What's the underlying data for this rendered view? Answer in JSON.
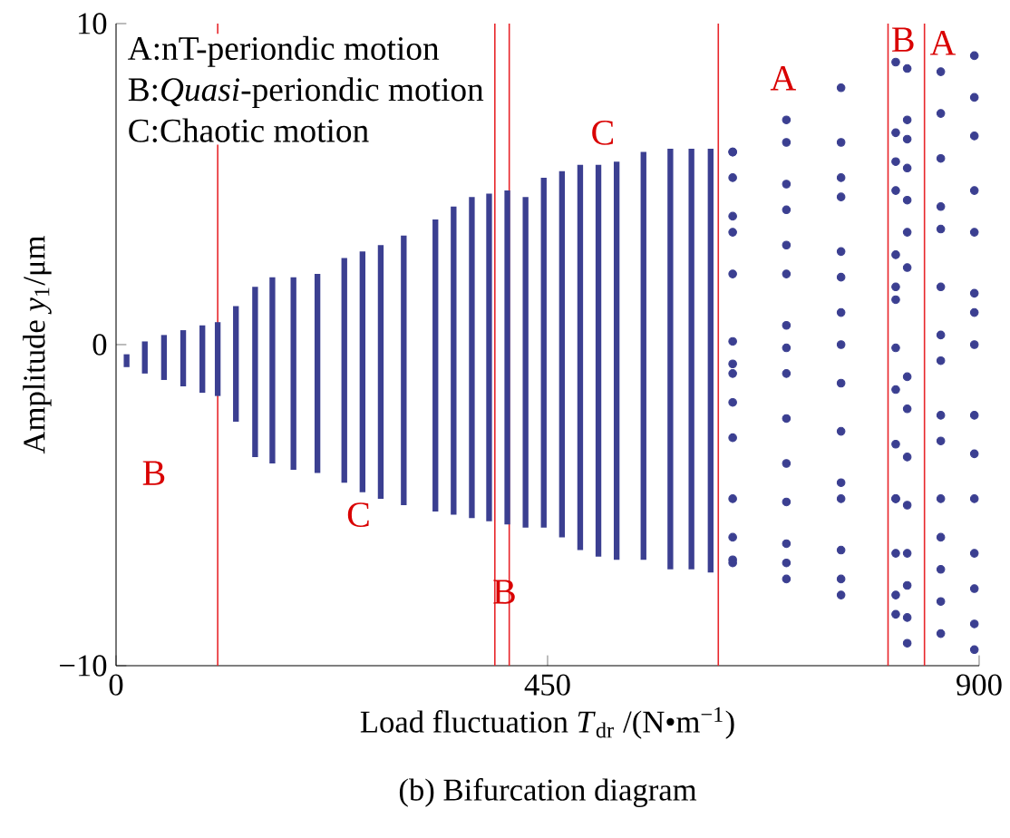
{
  "chart_data": {
    "type": "scatter",
    "title": "(b) Bifurcation diagram",
    "xlabel": "Load fluctuation  *T*$_{dr}$ /(N•m$^{−1}$)",
    "ylabel": "Amplitude  *y*$_{1}$/μm",
    "xlim": [
      0,
      900
    ],
    "ylim": [
      -10,
      10
    ],
    "xticks": [
      0,
      450,
      900
    ],
    "yticks": [
      {
        "value": -10,
        "label": "−10"
      },
      0,
      10
    ],
    "grid": false,
    "series": [
      {
        "type": "bar",
        "color": "#3b3f91",
        "x": [
          11,
          30,
          50,
          70,
          90,
          106,
          125,
          145,
          163,
          185,
          210,
          238,
          257,
          276,
          300,
          333,
          352,
          371,
          389,
          408,
          427,
          446,
          465,
          484,
          503,
          522,
          550,
          578,
          600,
          620
        ],
        "base": [
          -0.7,
          -0.9,
          -1.1,
          -1.3,
          -1.5,
          -1.6,
          -2.4,
          -3.5,
          -3.7,
          -3.9,
          -4.0,
          -4.3,
          -4.6,
          -4.8,
          -5.0,
          -5.2,
          -5.3,
          -5.4,
          -5.5,
          -5.6,
          -5.7,
          -5.7,
          -6.0,
          -6.4,
          -6.6,
          -6.7,
          -6.7,
          -7.0,
          -7.0,
          -7.1
        ],
        "values": [
          0.4,
          1.0,
          1.4,
          1.75,
          2.1,
          2.3,
          3.6,
          5.3,
          5.8,
          6.0,
          6.2,
          7.0,
          7.5,
          7.9,
          8.4,
          9.1,
          9.6,
          10.0,
          10.2,
          10.4,
          10.3,
          10.9,
          11.4,
          12.0,
          12.2,
          12.4,
          12.7,
          13.1,
          13.1,
          13.2
        ]
      },
      {
        "color": "#3b3f91",
        "x": [
          643,
          699,
          756,
          813,
          643,
          699,
          756,
          813,
          643,
          699,
          756,
          813,
          643,
          699,
          756,
          813,
          643,
          699,
          756,
          813,
          643,
          699,
          756,
          813,
          643,
          699,
          756,
          813,
          643,
          699,
          756,
          813,
          643,
          699,
          756,
          813,
          643,
          699,
          756,
          813,
          643,
          699,
          756,
          813,
          643,
          699,
          756,
          813,
          643,
          699,
          756,
          813,
          643,
          699,
          756,
          813,
          643,
          699,
          756,
          813,
          825,
          825,
          825,
          825,
          825,
          825,
          825,
          825,
          825,
          825,
          825,
          825,
          825,
          825,
          825,
          860,
          860,
          860,
          860,
          860,
          860,
          860,
          860,
          860,
          860,
          860,
          860,
          860,
          860,
          860,
          895,
          895,
          895,
          895,
          895,
          895,
          895,
          895,
          895,
          895,
          895,
          895,
          895,
          895,
          895
        ],
        "values": [
          6.0,
          7.0,
          8.0,
          8.8,
          6.0,
          6.3,
          6.3,
          6.6,
          5.2,
          5.0,
          5.2,
          5.7,
          4.0,
          4.2,
          4.6,
          4.8,
          3.5,
          3.1,
          2.9,
          2.8,
          2.2,
          2.2,
          2.1,
          1.8,
          0.1,
          0.6,
          1.0,
          1.4,
          -0.6,
          -0.1,
          0.0,
          -0.1,
          -0.9,
          -0.9,
          -1.2,
          -1.4,
          -1.8,
          -2.3,
          -2.7,
          -3.1,
          -2.9,
          -3.7,
          -4.3,
          -4.8,
          -4.8,
          -4.9,
          -4.8,
          -4.8,
          -6.0,
          -6.2,
          -6.4,
          -6.5,
          -6.7,
          -6.8,
          -7.3,
          -7.8,
          -6.8,
          -7.3,
          -7.8,
          -8.4,
          8.6,
          7.0,
          6.4,
          5.5,
          4.5,
          3.5,
          2.4,
          -1.0,
          -2.0,
          -3.5,
          -5.0,
          -6.5,
          -7.5,
          -8.5,
          -9.3,
          8.5,
          7.2,
          5.8,
          4.3,
          3.6,
          1.8,
          0.3,
          -0.5,
          -2.2,
          -3.0,
          -4.8,
          -6.0,
          -7.0,
          -8.0,
          -9.0,
          9.0,
          7.7,
          6.5,
          4.8,
          3.5,
          1.6,
          1.0,
          0.0,
          -2.2,
          -3.4,
          -4.8,
          -6.5,
          -7.6,
          -8.7,
          -9.5
        ]
      }
    ],
    "ref_lines": [
      {
        "axis": "x",
        "value": 106,
        "color": "#e8262b"
      },
      {
        "axis": "x",
        "value": 395,
        "color": "#e8262b"
      },
      {
        "axis": "x",
        "value": 410,
        "color": "#e8262b"
      },
      {
        "axis": "x",
        "value": 628,
        "color": "#e8262b"
      },
      {
        "axis": "x",
        "value": 805,
        "color": "#e8262b"
      },
      {
        "axis": "x",
        "value": 843,
        "color": "#e8262b"
      }
    ],
    "annotations": [
      "A:nT-periondic motion",
      "B:*Quasi*-periondic motion",
      "C:Chaotic motion",
      "B",
      "C",
      "B",
      "C",
      "A",
      "B",
      "A"
    ]
  }
}
